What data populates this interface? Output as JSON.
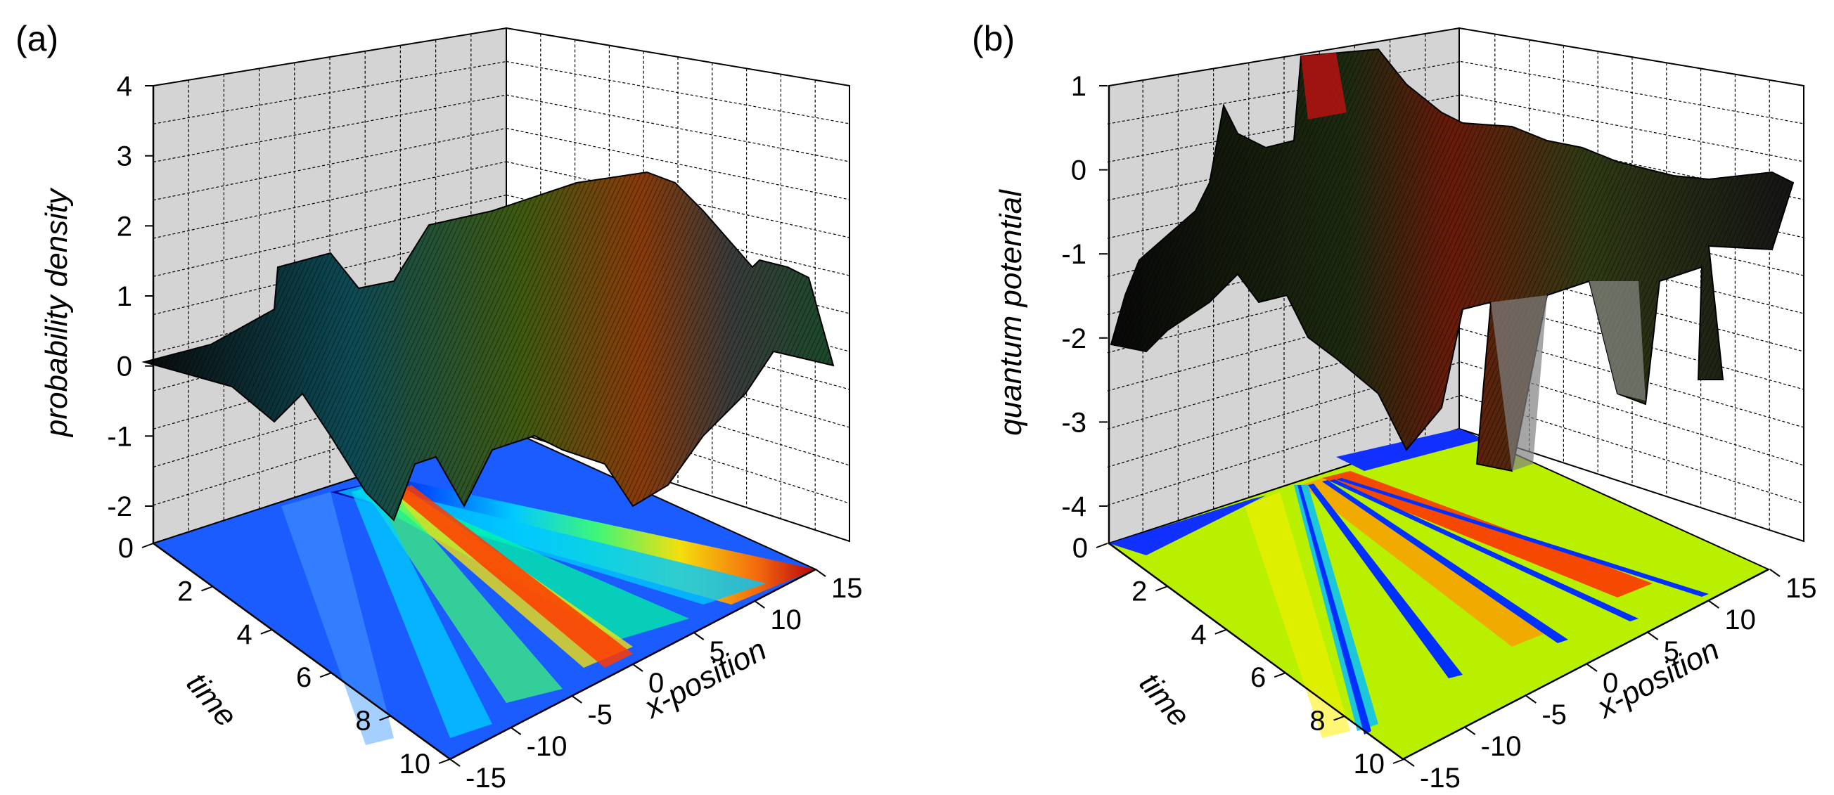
{
  "chart_data": [
    {
      "panel_label": "(a)",
      "type": "surface3d",
      "zlabel": "probability density",
      "xlabel": "x-position",
      "ylabel": "time",
      "zlim": [
        -2,
        4
      ],
      "z_ticks": [
        "4",
        "3",
        "2",
        "1",
        "0",
        "-1",
        "-2"
      ],
      "x_ticks": [
        "15",
        "10",
        "5",
        "0",
        "-5",
        "-10",
        "-15"
      ],
      "time_ticks": [
        "0",
        "2",
        "4",
        "6",
        "8",
        "10"
      ],
      "xlim": [
        -15,
        15
      ],
      "tlim": [
        0,
        10
      ],
      "grid": true,
      "colormap": "jet (blue to red)",
      "peak_value": 2.6,
      "projection": "contour on floor plane"
    },
    {
      "panel_label": "(b)",
      "type": "surface3d",
      "zlabel": "quantum potential",
      "xlabel": "x-position",
      "ylabel": "time",
      "zlim": [
        -4,
        1
      ],
      "z_ticks": [
        "1",
        "0",
        "-1",
        "-2",
        "-3",
        "-4"
      ],
      "x_ticks": [
        "15",
        "10",
        "5",
        "0",
        "-5",
        "-10",
        "-15"
      ],
      "time_ticks": [
        "0",
        "2",
        "4",
        "6",
        "8",
        "10"
      ],
      "xlim": [
        -15,
        15
      ],
      "tlim": [
        0,
        10
      ],
      "grid": true,
      "colormap": "jet (blue to red)",
      "peak_value": 1,
      "projection": "contour on floor plane"
    }
  ]
}
